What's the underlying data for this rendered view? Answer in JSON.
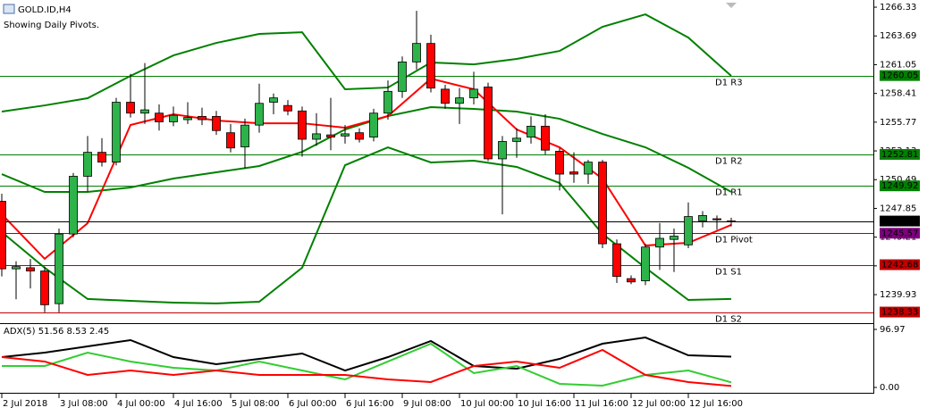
{
  "chart_data": [
    {
      "type": "candlestick",
      "title": "GOLD.ID,H4",
      "subtitle": "Showing Daily Pivots.",
      "ylim": [
        1237.31,
        1266.99
      ],
      "yticks": [
        1266.33,
        1263.69,
        1261.05,
        1258.41,
        1255.77,
        1253.13,
        1250.49,
        1247.85,
        1245.21,
        1242.57,
        1239.93
      ],
      "xticks": [
        {
          "value": 0,
          "label": "2 Jul 2018"
        },
        {
          "value": 4,
          "label": "3 Jul 08:00"
        },
        {
          "value": 8,
          "label": "4 Jul 00:00"
        },
        {
          "value": 12,
          "label": "4 Jul 16:00"
        },
        {
          "value": 16,
          "label": "5 Jul 08:00"
        },
        {
          "value": 20,
          "label": "6 Jul 00:00"
        },
        {
          "value": 24,
          "label": "6 Jul 16:00"
        },
        {
          "value": 28,
          "label": "9 Jul 08:00"
        },
        {
          "value": 32,
          "label": "10 Jul 00:00"
        },
        {
          "value": 36,
          "label": "10 Jul 16:00"
        },
        {
          "value": 40,
          "label": "11 Jul 16:00"
        },
        {
          "value": 44,
          "label": "12 Jul 00:00"
        },
        {
          "value": 48,
          "label": "12 Jul 16:00"
        }
      ],
      "up_color": "#2db34a",
      "down_color": "#ff0000",
      "candles": {
        "open": [
          1248.5,
          1242.3,
          1242.4,
          1242.1,
          1239.1,
          1245.5,
          1250.8,
          1253.0,
          1252.1,
          1257.6,
          1256.6,
          1256.6,
          1255.8,
          1256.0,
          1256.3,
          1256.3,
          1254.8,
          1253.5,
          1255.5,
          1257.6,
          1257.3,
          1256.8,
          1254.2,
          1254.6,
          1254.5,
          1254.8,
          1254.4,
          1256.6,
          1258.6,
          1261.3,
          1263.0,
          1258.8,
          1257.5,
          1258.0,
          1259.0,
          1252.4,
          1254.0,
          1254.4,
          1255.4,
          1253.1,
          1251.2,
          1251.0,
          1252.1,
          1244.6,
          1241.4,
          1241.2,
          1244.3,
          1245.0,
          1244.5,
          1246.7,
          1246.9,
          1246.7
        ],
        "high": [
          1249.2,
          1243.0,
          1243.2,
          1242.5,
          1246.0,
          1251.1,
          1254.5,
          1254.3,
          1258.0,
          1260.2,
          1261.2,
          1257.4,
          1257.2,
          1257.6,
          1257.1,
          1256.8,
          1255.6,
          1256.1,
          1259.3,
          1258.4,
          1257.8,
          1257.2,
          1256.6,
          1258.0,
          1255.5,
          1255.2,
          1257.0,
          1259.6,
          1261.8,
          1266.0,
          1263.8,
          1259.2,
          1258.9,
          1260.4,
          1259.4,
          1254.5,
          1255.2,
          1256.3,
          1256.5,
          1253.4,
          1253.0,
          1252.3,
          1252.3,
          1245.0,
          1241.7,
          1244.6,
          1246.5,
          1246.0,
          1248.4,
          1247.6,
          1247.2,
          1247.0
        ],
        "low": [
          1241.6,
          1239.5,
          1240.5,
          1238.3,
          1238.3,
          1245.2,
          1249.4,
          1251.7,
          1251.8,
          1256.2,
          1255.6,
          1255.0,
          1255.4,
          1255.6,
          1255.5,
          1254.6,
          1253.0,
          1251.5,
          1254.8,
          1256.5,
          1256.4,
          1252.6,
          1253.6,
          1253.2,
          1253.8,
          1253.9,
          1254.0,
          1256.0,
          1258.0,
          1260.6,
          1258.5,
          1257.0,
          1255.6,
          1257.4,
          1252.2,
          1247.3,
          1252.5,
          1253.8,
          1252.8,
          1249.5,
          1250.2,
          1250.1,
          1244.2,
          1241.0,
          1240.9,
          1240.8,
          1242.2,
          1242.0,
          1244.2,
          1246.1,
          1245.9,
          1246.2
        ],
        "close": [
          1242.3,
          1242.5,
          1242.1,
          1239.0,
          1245.5,
          1250.8,
          1253.0,
          1252.1,
          1257.6,
          1256.6,
          1256.9,
          1255.8,
          1256.4,
          1256.2,
          1256.0,
          1255.0,
          1253.4,
          1255.5,
          1257.5,
          1258.0,
          1256.8,
          1254.2,
          1254.7,
          1254.4,
          1254.7,
          1254.2,
          1256.6,
          1258.6,
          1261.3,
          1263.0,
          1258.9,
          1257.5,
          1258.0,
          1258.8,
          1252.4,
          1254.0,
          1254.3,
          1255.4,
          1253.2,
          1251.0,
          1251.0,
          1252.1,
          1244.6,
          1241.6,
          1241.1,
          1244.3,
          1245.1,
          1245.3,
          1247.1,
          1247.2,
          1246.8,
          1246.69
        ]
      },
      "lines": {
        "x": [
          0,
          3,
          6,
          9,
          12,
          15,
          18,
          21,
          24,
          27,
          30,
          33,
          36,
          39,
          42,
          45,
          48,
          51
        ],
        "series": [
          {
            "color": "#008000",
            "values": [
              1256.74,
              1257.31,
              1257.97,
              1260.02,
              1261.9,
              1263.05,
              1263.87,
              1264.03,
              1258.79,
              1258.95,
              1261.25,
              1261.08,
              1261.58,
              1262.31,
              1264.53,
              1265.67,
              1263.54,
              1260.02
            ]
          },
          {
            "color": "#008000",
            "values": [
              1251.0,
              1249.36,
              1249.36,
              1249.77,
              1250.59,
              1251.17,
              1251.74,
              1253.05,
              1255.1,
              1256.33,
              1257.15,
              1256.99,
              1256.74,
              1256.08,
              1254.69,
              1253.46,
              1251.58,
              1249.36
            ]
          },
          {
            "color": "#008000",
            "values": [
              1245.67,
              1242.4,
              1239.53,
              1239.36,
              1239.2,
              1239.12,
              1239.28,
              1242.4,
              1251.82,
              1253.46,
              1252.07,
              1252.23,
              1251.66,
              1250.18,
              1245.51,
              1242.4,
              1239.44,
              1239.53
            ]
          },
          {
            "color": "#ff0000",
            "values": [
              1247.31,
              1243.22,
              1246.49,
              1255.51,
              1256.49,
              1255.92,
              1255.67,
              1255.67,
              1255.26,
              1256.33,
              1259.77,
              1258.79,
              1255.1,
              1253.46,
              1250.59,
              1244.44,
              1244.69,
              1246.33
            ]
          }
        ]
      },
      "pivots": [
        {
          "name": "D1 R3",
          "value": 1260.05,
          "color": "#008000"
        },
        {
          "name": "D1 R2",
          "value": 1252.81,
          "color": "#008000"
        },
        {
          "name": "D1 R1",
          "value": 1249.92,
          "color": "#008000"
        },
        {
          "name": "D1 Pivot",
          "value": 1245.57,
          "color": "#800080"
        },
        {
          "name": "D1 S1",
          "value": 1242.68,
          "color": "#c00000"
        },
        {
          "name": "D1 S2",
          "value": 1238.33,
          "color": "#c00000"
        }
      ],
      "current_price": 1246.69
    },
    {
      "type": "line",
      "title": "ADX(5) 51.56 8.53 2.45",
      "ylim": [
        -8.95,
        104.43
      ],
      "yticks": [
        96.97,
        {
          "value": 0,
          "label": "0.00"
        }
      ],
      "x": [
        0,
        3,
        6,
        9,
        12,
        15,
        18,
        21,
        24,
        27,
        30,
        33,
        36,
        39,
        42,
        45,
        48,
        51
      ],
      "series": [
        {
          "color": "#000000",
          "values": [
            50.7,
            58.2,
            68.6,
            79.1,
            50.7,
            38.8,
            47.7,
            56.7,
            28.3,
            50.7,
            77.6,
            35.8,
            31.3,
            47.7,
            73.1,
            83.5,
            53.7,
            51.56
          ]
        },
        {
          "color": "#32cd32",
          "values": [
            35.8,
            35.8,
            58.2,
            43.3,
            32.8,
            28.3,
            43.3,
            28.3,
            13.4,
            43.3,
            73.1,
            23.9,
            35.8,
            6.0,
            3.0,
            20.9,
            28.3,
            8.53
          ]
        },
        {
          "color": "#ff0000",
          "values": [
            50.7,
            43.3,
            20.9,
            28.3,
            20.9,
            28.3,
            20.9,
            20.9,
            20.9,
            13.4,
            9.0,
            35.8,
            43.3,
            32.8,
            62.7,
            20.9,
            9.0,
            2.45
          ]
        }
      ]
    }
  ]
}
